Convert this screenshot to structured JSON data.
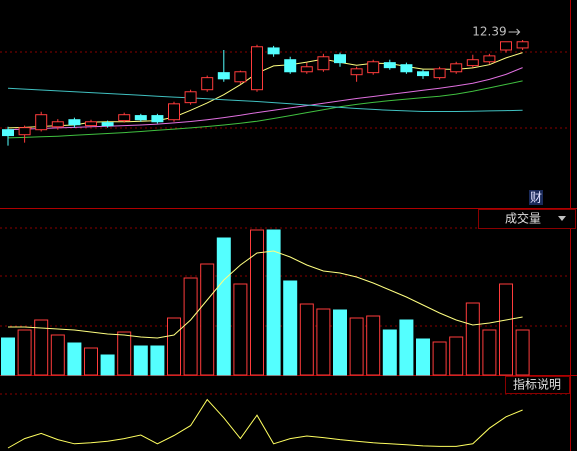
{
  "chart_data": [
    {
      "type": "candlestick",
      "annotation": "12.39",
      "badge": "财",
      "ylim": [
        6.78,
        13.75
      ],
      "up_color": "#ff3c3c",
      "down_color": "#54ffff",
      "open": [
        9.34,
        9.17,
        9.34,
        9.44,
        9.68,
        9.48,
        9.58,
        9.65,
        9.82,
        9.82,
        9.68,
        10.26,
        10.7,
        11.28,
        10.97,
        10.7,
        12.12,
        11.72,
        11.31,
        11.38,
        11.89,
        11.21,
        11.28,
        11.62,
        11.55,
        11.31,
        11.11,
        11.31,
        11.52,
        11.65,
        12.05,
        12.12
      ],
      "high": [
        9.44,
        9.48,
        9.95,
        9.7,
        9.75,
        9.68,
        9.65,
        9.92,
        9.88,
        9.88,
        10.29,
        10.7,
        11.18,
        12.05,
        11.35,
        12.23,
        12.19,
        11.82,
        11.62,
        11.92,
        11.96,
        11.48,
        11.72,
        11.72,
        11.62,
        11.38,
        11.48,
        11.65,
        11.89,
        11.92,
        12.3,
        12.39
      ],
      "low": [
        8.8,
        8.9,
        9.28,
        9.34,
        9.41,
        9.44,
        9.41,
        9.58,
        9.61,
        9.55,
        9.61,
        10.19,
        10.63,
        10.97,
        10.9,
        10.63,
        11.82,
        11.24,
        11.24,
        11.31,
        11.48,
        10.97,
        11.21,
        11.38,
        11.24,
        11.07,
        11.04,
        11.24,
        11.45,
        11.58,
        11.96,
        12.05
      ],
      "close": [
        9.14,
        9.41,
        9.85,
        9.61,
        9.51,
        9.61,
        9.48,
        9.85,
        9.68,
        9.61,
        10.22,
        10.63,
        11.11,
        11.07,
        11.31,
        12.16,
        11.92,
        11.31,
        11.48,
        11.82,
        11.62,
        11.41,
        11.65,
        11.45,
        11.31,
        11.18,
        11.41,
        11.58,
        11.72,
        11.85,
        12.33,
        12.33
      ],
      "series": [
        {
          "color": "#ffff80",
          "values": [
            9.4,
            9.42,
            9.45,
            9.48,
            9.5,
            9.6,
            9.61,
            9.61,
            9.63,
            9.65,
            9.77,
            10.0,
            10.25,
            10.53,
            10.87,
            11.26,
            11.51,
            11.55,
            11.64,
            11.74,
            11.63,
            11.53,
            11.6,
            11.59,
            11.49,
            11.4,
            11.4,
            11.39,
            11.44,
            11.55,
            11.78,
            11.96
          ]
        },
        {
          "color": "#e070e0",
          "values": [
            9.34,
            9.36,
            9.38,
            9.4,
            9.42,
            9.44,
            9.46,
            9.48,
            9.5,
            9.53,
            9.57,
            9.62,
            9.68,
            9.75,
            9.83,
            9.92,
            10.0,
            10.08,
            10.16,
            10.24,
            10.32,
            10.4,
            10.47,
            10.54,
            10.61,
            10.68,
            10.75,
            10.83,
            10.92,
            11.05,
            11.22,
            11.45
          ]
        },
        {
          "color": "#40c040",
          "values": [
            9.06,
            9.08,
            9.1,
            9.12,
            9.15,
            9.18,
            9.21,
            9.24,
            9.28,
            9.32,
            9.36,
            9.4,
            9.45,
            9.5,
            9.56,
            9.63,
            9.72,
            9.82,
            9.92,
            10.02,
            10.12,
            10.2,
            10.27,
            10.33,
            10.38,
            10.43,
            10.48,
            10.55,
            10.65,
            10.76,
            10.88,
            11.0
          ]
        },
        {
          "color": "#40c0c0",
          "values": [
            10.75,
            10.72,
            10.69,
            10.66,
            10.63,
            10.6,
            10.57,
            10.54,
            10.51,
            10.48,
            10.45,
            10.42,
            10.39,
            10.36,
            10.33,
            10.3,
            10.26,
            10.22,
            10.18,
            10.14,
            10.1,
            10.06,
            10.03,
            10.0,
            9.98,
            9.96,
            9.96,
            9.96,
            9.97,
            9.98,
            9.99,
            10.0
          ]
        }
      ]
    },
    {
      "type": "bar",
      "title": "成交量",
      "ylim": [
        0,
        150
      ],
      "values": [
        37,
        45,
        55,
        40,
        32,
        27,
        20,
        43,
        29,
        29,
        57,
        97,
        111,
        137,
        91,
        145,
        145,
        94,
        71,
        66,
        65,
        57,
        59,
        45,
        55,
        36,
        33,
        38,
        72,
        45,
        91,
        45
      ],
      "series": [
        {
          "color": "#ffff80",
          "values": [
            48,
            48,
            47,
            46,
            45,
            43,
            41,
            40,
            38,
            37,
            40,
            55,
            75,
            95,
            110,
            122,
            124,
            118,
            110,
            104,
            102,
            98,
            92,
            85,
            78,
            70,
            62,
            55,
            50,
            52,
            55,
            58
          ]
        }
      ]
    },
    {
      "type": "line",
      "button": "指标说明",
      "ylim": [
        0,
        100
      ],
      "series": [
        {
          "color": "#ffff60",
          "values": [
            2,
            20,
            30,
            18,
            10,
            12,
            15,
            20,
            27,
            10,
            26,
            45,
            95,
            60,
            20,
            65,
            10,
            20,
            25,
            22,
            18,
            15,
            12,
            10,
            8,
            6,
            5,
            5,
            10,
            40,
            62,
            75
          ]
        }
      ]
    }
  ]
}
